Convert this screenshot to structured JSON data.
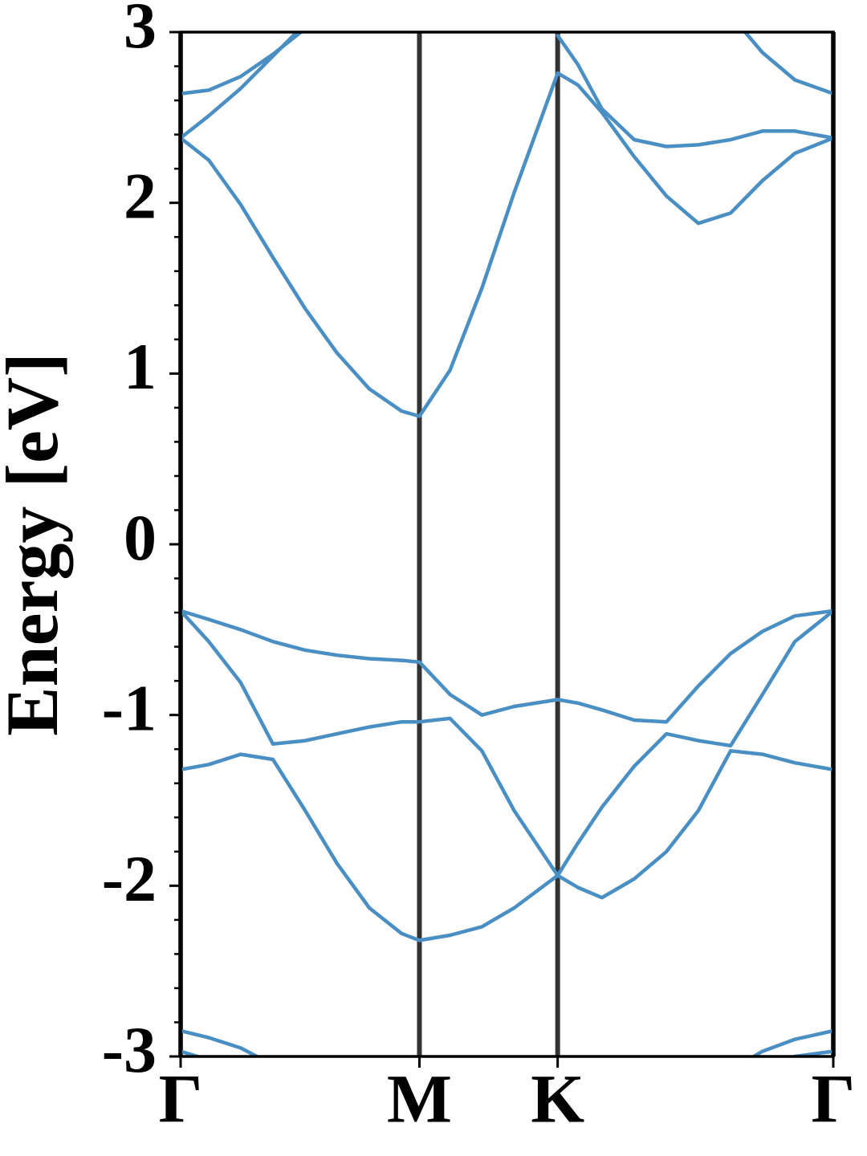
{
  "chart_data": {
    "type": "line",
    "y_label": "Energy [eV]",
    "x": [
      0,
      0.068,
      0.145,
      0.223,
      0.301,
      0.378,
      0.456,
      0.534,
      0.577,
      0.651,
      0.728,
      0.806,
      0.911,
      0.96,
      1.018,
      1.096,
      1.174,
      1.251,
      1.329,
      1.406,
      1.484,
      1.577
    ],
    "series": [
      {
        "color": "#4a8fc3",
        "values": [
          -2.85,
          -2.89,
          -2.95,
          -3.05,
          null,
          null,
          null,
          null,
          null,
          null,
          null,
          null,
          null,
          null,
          null,
          null,
          null,
          null,
          -3.08,
          -2.97,
          -2.9,
          -2.85
        ]
      },
      {
        "color": "#4a8fc3",
        "values": [
          -2.97,
          -3.02,
          null,
          null,
          null,
          null,
          null,
          null,
          null,
          null,
          null,
          null,
          null,
          null,
          null,
          null,
          null,
          null,
          null,
          null,
          -3.0,
          -2.97
        ]
      },
      {
        "color": "#4a8fc3",
        "values": [
          -1.32,
          -1.29,
          -1.23,
          -1.26,
          -1.56,
          -1.87,
          -2.13,
          -2.28,
          -2.32,
          -2.29,
          -2.24,
          -2.13,
          -1.94,
          -2.01,
          -2.07,
          -1.96,
          -1.8,
          -1.56,
          -1.21,
          -1.23,
          -1.28,
          -1.32
        ]
      },
      {
        "color": "#4a8fc3",
        "values": [
          -0.39,
          -0.57,
          -0.81,
          -1.17,
          -1.15,
          -1.11,
          -1.07,
          -1.04,
          -1.04,
          -1.02,
          -1.21,
          -1.56,
          -1.94,
          -1.75,
          -1.54,
          -1.3,
          -1.11,
          -1.15,
          -1.18,
          -0.88,
          -0.57,
          -0.39
        ]
      },
      {
        "color": "#4a8fc3",
        "values": [
          -0.39,
          -0.44,
          -0.5,
          -0.57,
          -0.62,
          -0.65,
          -0.67,
          -0.68,
          -0.69,
          -0.88,
          -1.0,
          -0.95,
          -0.91,
          -0.93,
          -0.97,
          -1.03,
          -1.04,
          -0.83,
          -0.64,
          -0.51,
          -0.42,
          -0.39
        ]
      },
      {
        "color": "#4a8fc3",
        "values": [
          2.38,
          2.25,
          1.99,
          1.68,
          1.38,
          1.12,
          0.91,
          0.78,
          0.75,
          1.02,
          1.5,
          2.06,
          2.76,
          2.69,
          2.53,
          2.27,
          2.04,
          1.88,
          1.94,
          2.13,
          2.29,
          2.38
        ]
      },
      {
        "color": "#4a8fc3",
        "values": [
          2.38,
          2.51,
          2.67,
          2.86,
          3.05,
          null,
          null,
          null,
          null,
          null,
          null,
          null,
          2.98,
          2.81,
          2.55,
          2.37,
          2.33,
          2.34,
          2.37,
          2.42,
          2.42,
          2.38
        ]
      },
      {
        "color": "#4a8fc3",
        "values": [
          2.64,
          2.66,
          2.74,
          2.87,
          3.02,
          null,
          null,
          null,
          null,
          null,
          null,
          null,
          null,
          null,
          null,
          null,
          null,
          null,
          3.1,
          2.88,
          2.72,
          2.64
        ]
      }
    ],
    "xlim": [
      0,
      1.577
    ],
    "ylim": [
      -3,
      3
    ],
    "xticks": [
      {
        "value": 0,
        "label": "Γ"
      },
      {
        "value": 0.577,
        "label": "M"
      },
      {
        "value": 0.911,
        "label": "K"
      },
      {
        "value": 1.577,
        "label": "Γ"
      }
    ],
    "yticks": [
      -3,
      -2,
      -1,
      0,
      1,
      2,
      3
    ],
    "yticks_minor": [
      -2.8,
      -2.6,
      -2.4,
      -2.2,
      -1.8,
      -1.6,
      -1.4,
      -1.2,
      -0.8,
      -0.6,
      -0.4,
      -0.2,
      0.2,
      0.4,
      0.6,
      0.8,
      1.2,
      1.4,
      1.6,
      1.8,
      2.2,
      2.4,
      2.6,
      2.8
    ],
    "symmetry_lines": true,
    "symmetry_line_color": "#333333"
  }
}
